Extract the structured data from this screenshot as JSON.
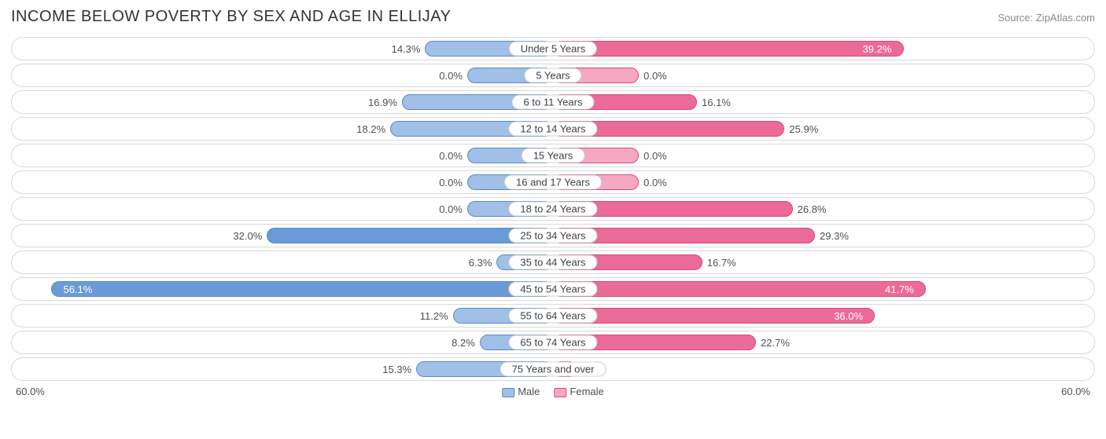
{
  "title": "INCOME BELOW POVERTY BY SEX AND AGE IN ELLIJAY",
  "source": "Source: ZipAtlas.com",
  "chart": {
    "type": "bidirectional-bar",
    "axis_max": 60.0,
    "axis_label": "60.0%",
    "male": {
      "label": "Male",
      "fill_normal": "#a0c0e8",
      "fill_strong": "#6a9bd8",
      "border": "#5a8ac6"
    },
    "female": {
      "label": "Female",
      "fill_normal": "#f5a8c0",
      "fill_strong": "#ec6a98",
      "border": "#d84a80"
    },
    "row_border": "#d8d8d8",
    "background": "#ffffff",
    "label_fontsize": 13,
    "title_fontsize": 20,
    "categories": [
      {
        "label": "Under 5 Years",
        "male": 14.3,
        "female": 39.2,
        "m_strong": false,
        "f_strong": true
      },
      {
        "label": "5 Years",
        "male": 0.0,
        "female": 0.0,
        "m_strong": false,
        "f_strong": false,
        "m_stub": true,
        "f_stub": true
      },
      {
        "label": "6 to 11 Years",
        "male": 16.9,
        "female": 16.1,
        "m_strong": false,
        "f_strong": true
      },
      {
        "label": "12 to 14 Years",
        "male": 18.2,
        "female": 25.9,
        "m_strong": false,
        "f_strong": true
      },
      {
        "label": "15 Years",
        "male": 0.0,
        "female": 0.0,
        "m_strong": false,
        "f_strong": false,
        "m_stub": true,
        "f_stub": true
      },
      {
        "label": "16 and 17 Years",
        "male": 0.0,
        "female": 0.0,
        "m_strong": false,
        "f_strong": false,
        "m_stub": true,
        "f_stub": true
      },
      {
        "label": "18 to 24 Years",
        "male": 0.0,
        "female": 26.8,
        "m_strong": false,
        "f_strong": true,
        "m_stub": true
      },
      {
        "label": "25 to 34 Years",
        "male": 32.0,
        "female": 29.3,
        "m_strong": true,
        "f_strong": true
      },
      {
        "label": "35 to 44 Years",
        "male": 6.3,
        "female": 16.7,
        "m_strong": false,
        "f_strong": true
      },
      {
        "label": "45 to 54 Years",
        "male": 56.1,
        "female": 41.7,
        "m_strong": true,
        "f_strong": true
      },
      {
        "label": "55 to 64 Years",
        "male": 11.2,
        "female": 36.0,
        "m_strong": false,
        "f_strong": true
      },
      {
        "label": "65 to 74 Years",
        "male": 8.2,
        "female": 22.7,
        "m_strong": false,
        "f_strong": true
      },
      {
        "label": "75 Years and over",
        "male": 15.3,
        "female": 2.7,
        "m_strong": false,
        "f_strong": false
      }
    ]
  }
}
